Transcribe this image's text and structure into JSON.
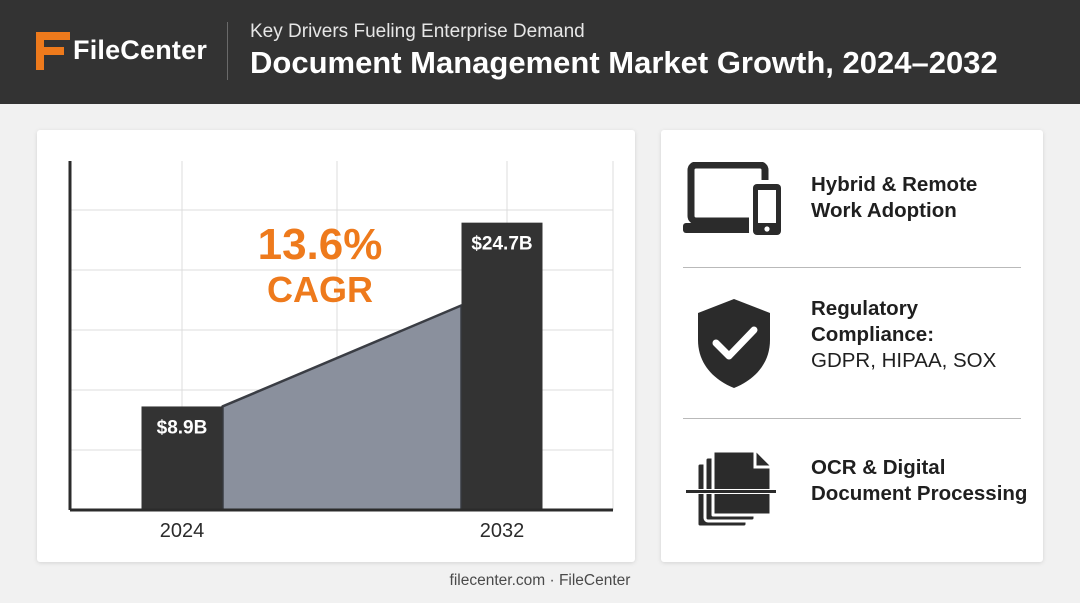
{
  "header": {
    "brand": "FileCenter",
    "subtitle": "Key Drivers Fueling Enterprise Demand",
    "title": "Document Management Market Growth, 2024–2032",
    "accent_color": "#ee7a1c",
    "background_color": "#333333"
  },
  "chart_data": {
    "type": "bar",
    "categories": [
      "2024",
      "2032"
    ],
    "values": [
      8.9,
      24.7
    ],
    "value_labels": [
      "$8.9B",
      "$24.7B"
    ],
    "ylim": [
      0,
      30
    ],
    "grid": true,
    "bar_color": "#333333",
    "area_fill": "#8a909d",
    "annotation": {
      "line1": "13.6%",
      "line2": "CAGR",
      "color": "#ee7a1c"
    }
  },
  "drivers": [
    {
      "icon": "laptop-phone-icon",
      "line1": "Hybrid & Remote",
      "line2": "Work Adoption",
      "line3": ""
    },
    {
      "icon": "shield-check-icon",
      "line1": "Regulatory",
      "line2": "Compliance:",
      "line3": "GDPR, HIPAA, SOX"
    },
    {
      "icon": "document-scan-icon",
      "line1": "OCR & Digital",
      "line2": "Document Processing",
      "line3": ""
    }
  ],
  "footer": "filecenter.com · FileCenter"
}
